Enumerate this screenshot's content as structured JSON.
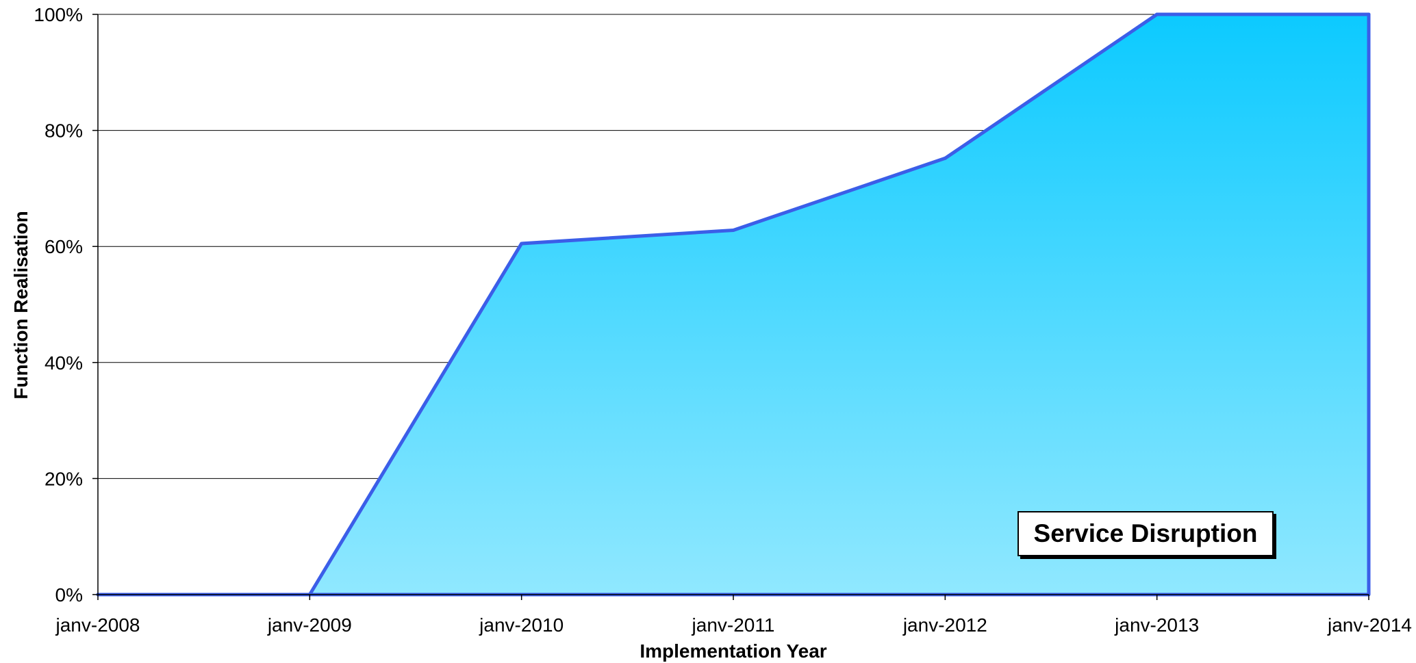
{
  "chart_data": {
    "type": "area",
    "x": [
      "janv-2008",
      "janv-2009",
      "janv-2010",
      "janv-2011",
      "janv-2012",
      "janv-2013",
      "janv-2014"
    ],
    "values": [
      0,
      0,
      60.5,
      62.8,
      75.2,
      100,
      100
    ],
    "y_unit": "%",
    "ylim": [
      0,
      100
    ],
    "y_ticks": [
      "0%",
      "20%",
      "40%",
      "60%",
      "80%",
      "100%"
    ],
    "y_tick_values": [
      0,
      20,
      40,
      60,
      80,
      100
    ],
    "xlabel": "Implementation Year",
    "ylabel": "Function Realisation",
    "annotation": "Service Disruption",
    "grid": "horizontal",
    "colors": {
      "line": "#3b5ee8",
      "fill_top": "#0ccaff",
      "fill_bottom": "#90e8ff",
      "grid": "#000000"
    }
  }
}
